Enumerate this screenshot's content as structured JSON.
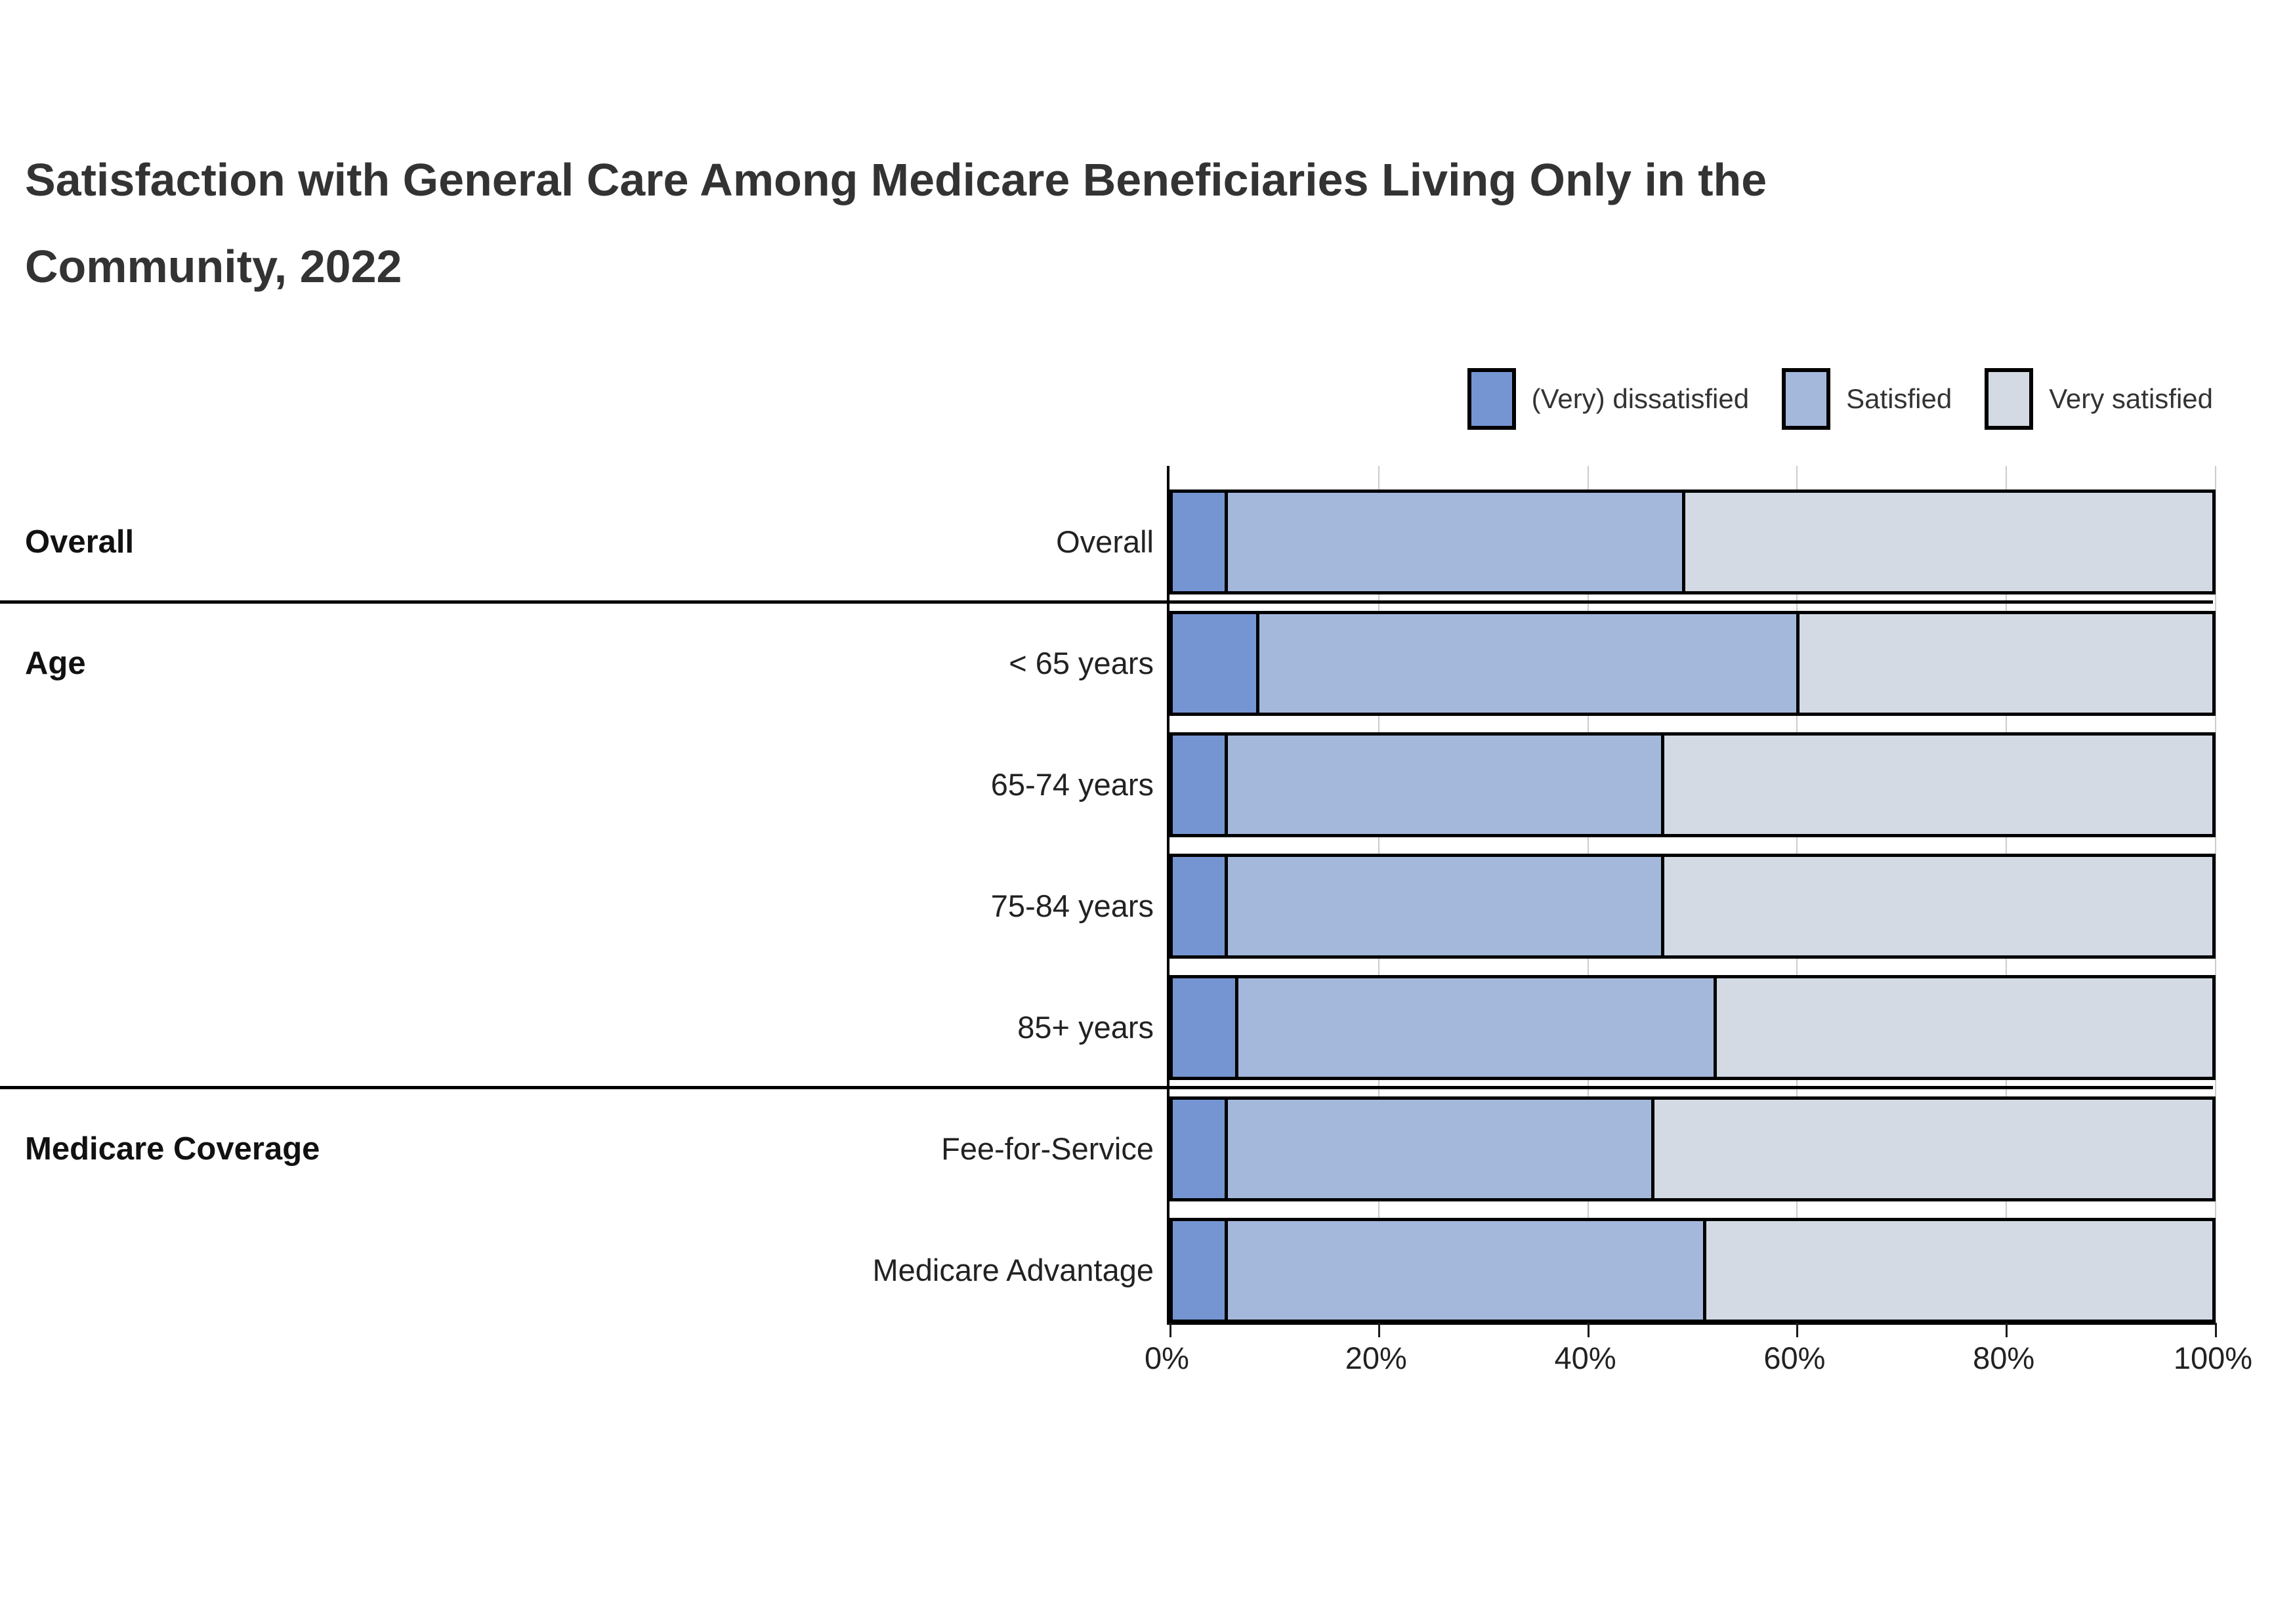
{
  "page": {
    "background": "#ffffff"
  },
  "title": {
    "line1": "Satisfaction with General Care Among Medicare Beneficiaries Living Only in the",
    "line2": "Community, 2022"
  },
  "chart_data": {
    "type": "bar",
    "orientation": "horizontal",
    "stacked": true,
    "grid": true,
    "legend_position": "top-right",
    "title": "Satisfaction with General Care Among Medicare Beneficiaries Living Only in the Community, 2022",
    "x_axis": {
      "unit": "%",
      "min": 0,
      "max": 100,
      "values": [
        0,
        20,
        40,
        60,
        80,
        100
      ],
      "ticks": [
        "0%",
        "20%",
        "40%",
        "60%",
        "80%",
        "100%"
      ]
    },
    "legend": [
      {
        "label": "(Very) dissatisfied",
        "color": "#7595d2"
      },
      {
        "label": "Satisfied",
        "color": "#a4b8dc"
      },
      {
        "label": "Very satisfied",
        "color": "#d4dae4"
      }
    ],
    "groups": [
      {
        "label": "Overall",
        "first_row": 0
      },
      {
        "label": "Age",
        "first_row": 1
      },
      {
        "label": "Medicare Coverage",
        "first_row": 5
      }
    ],
    "rows": [
      {
        "group": "Overall",
        "label": "Overall",
        "values": [
          5,
          44,
          51
        ]
      },
      {
        "group": "Age",
        "label": "< 65 years",
        "values": [
          8,
          52,
          40
        ]
      },
      {
        "group": "Age",
        "label": "65-74 years",
        "values": [
          5,
          42,
          53
        ]
      },
      {
        "group": "Age",
        "label": "75-84 years",
        "values": [
          5,
          42,
          53
        ]
      },
      {
        "group": "Age",
        "label": "85+ years",
        "values": [
          6,
          46,
          48
        ]
      },
      {
        "group": "Medicare Coverage",
        "label": "Fee-for-Service",
        "values": [
          5,
          41,
          54
        ]
      },
      {
        "group": "Medicare Coverage",
        "label": "Medicare Advantage",
        "values": [
          5,
          46,
          49
        ]
      }
    ]
  }
}
